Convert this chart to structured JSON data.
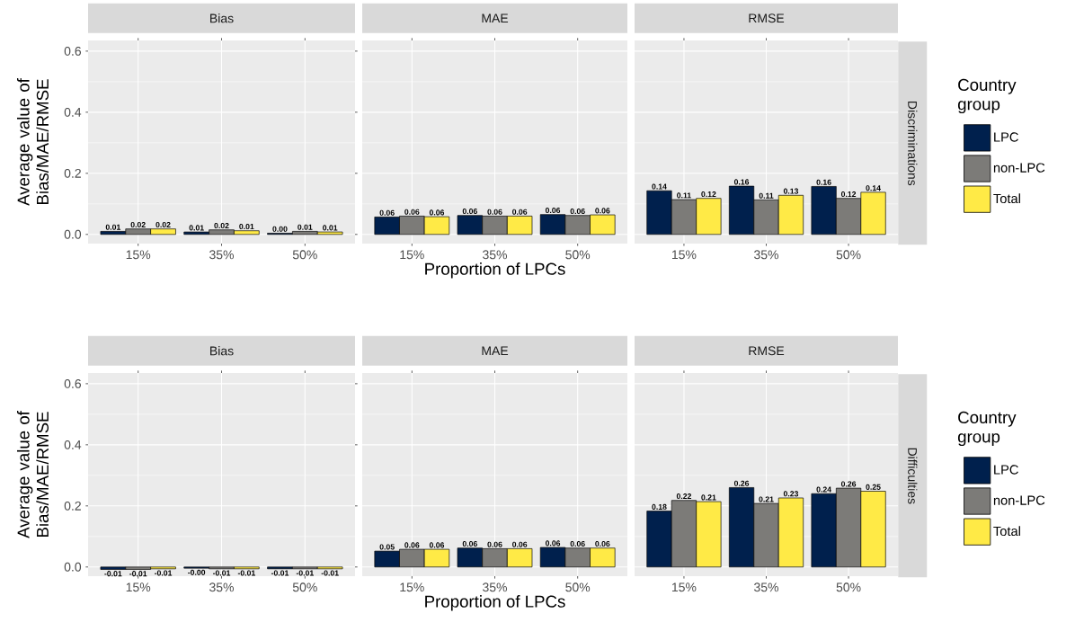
{
  "chart_data": [
    {
      "type": "bar",
      "title": "Bias",
      "ylabel": "Average value of Bias/MAE/RMSE",
      "categories": [
        "15%",
        "35%",
        "50%"
      ],
      "ylim": [
        -0.03,
        0.635
      ],
      "yticks": [
        {
          "value": 0,
          "label": "0.0"
        },
        {
          "value": 0.2,
          "label": "0.2"
        },
        {
          "value": 0.4,
          "label": "0.4"
        },
        {
          "value": 0.6,
          "label": "0.6"
        }
      ],
      "grid": true,
      "series": [
        {
          "color": "#00204D",
          "values": [
            0.01,
            0.008,
            0.004
          ],
          "value_labels": [
            "0.01",
            "0.01",
            "0.00"
          ]
        },
        {
          "color": "#7C7B78",
          "values": [
            0.018,
            0.015,
            0.01
          ],
          "value_labels": [
            "0.02",
            "0.02",
            "0.01"
          ]
        },
        {
          "color": "#FFEA46",
          "values": [
            0.018,
            0.012,
            0.008
          ],
          "value_labels": [
            "0.02",
            "0.01",
            "0.01"
          ]
        }
      ]
    },
    {
      "type": "bar",
      "title": "MAE",
      "xlabel": "Proportion of LPCs",
      "categories": [
        "15%",
        "35%",
        "50%"
      ],
      "ylim": [
        -0.03,
        0.635
      ],
      "yticks": [
        {
          "value": 0,
          "label": null
        },
        {
          "value": 0.2,
          "label": null
        },
        {
          "value": 0.4,
          "label": null
        },
        {
          "value": 0.6,
          "label": null
        }
      ],
      "grid": true,
      "tick_labels": "x",
      "series": [
        {
          "color": "#00204D",
          "values": [
            0.057,
            0.062,
            0.065
          ],
          "value_labels": [
            "0.06",
            "0.06",
            "0.06"
          ]
        },
        {
          "color": "#7C7B78",
          "values": [
            0.06,
            0.06,
            0.062
          ],
          "value_labels": [
            "0.06",
            "0.06",
            "0.06"
          ]
        },
        {
          "color": "#FFEA46",
          "values": [
            0.058,
            0.06,
            0.064
          ],
          "value_labels": [
            "0.06",
            "0.06",
            "0.06"
          ]
        }
      ]
    },
    {
      "type": "bar",
      "title": "RMSE",
      "annotations": [
        "Discriminations"
      ],
      "legend": "right",
      "legend_title": "Country group",
      "categories": [
        "15%",
        "35%",
        "50%"
      ],
      "ylim": [
        -0.03,
        0.635
      ],
      "yticks": [
        {
          "value": 0,
          "label": null
        },
        {
          "value": 0.2,
          "label": null
        },
        {
          "value": 0.4,
          "label": null
        },
        {
          "value": 0.6,
          "label": null
        }
      ],
      "grid": true,
      "tick_labels": "x",
      "series": [
        {
          "name": "LPC",
          "color": "#00204D",
          "values": [
            0.143,
            0.158,
            0.157
          ],
          "value_labels": [
            "0.14",
            "0.16",
            "0.16"
          ]
        },
        {
          "name": "non-LPC",
          "color": "#7C7B78",
          "values": [
            0.114,
            0.113,
            0.118
          ],
          "value_labels": [
            "0.11",
            "0.11",
            "0.12"
          ]
        },
        {
          "name": "Total",
          "color": "#FFEA46",
          "values": [
            0.118,
            0.128,
            0.138
          ],
          "value_labels": [
            "0.12",
            "0.13",
            "0.14"
          ]
        }
      ]
    },
    {
      "type": "bar",
      "title": "Bias",
      "ylabel": "Average value of Bias/MAE/RMSE",
      "categories": [
        "15%",
        "35%",
        "50%"
      ],
      "ylim": [
        -0.03,
        0.635
      ],
      "yticks": [
        {
          "value": 0,
          "label": "0.0"
        },
        {
          "value": 0.2,
          "label": "0.2"
        },
        {
          "value": 0.4,
          "label": "0.4"
        },
        {
          "value": 0.6,
          "label": "0.6"
        }
      ],
      "grid": true,
      "series": [
        {
          "color": "#00204D",
          "values": [
            -0.008,
            -0.004,
            -0.006
          ],
          "value_labels": [
            "-0.01",
            "-0.00",
            "-0.01"
          ]
        },
        {
          "color": "#7C7B78",
          "values": [
            -0.008,
            -0.006,
            -0.006
          ],
          "value_labels": [
            "-0.01",
            "-0.01",
            "-0.01"
          ]
        },
        {
          "color": "#FFEA46",
          "values": [
            -0.006,
            -0.006,
            -0.006
          ],
          "value_labels": [
            "-0.01",
            "-0.01",
            "-0.01"
          ]
        }
      ]
    },
    {
      "type": "bar",
      "title": "MAE",
      "xlabel": "Proportion of LPCs",
      "categories": [
        "15%",
        "35%",
        "50%"
      ],
      "ylim": [
        -0.03,
        0.635
      ],
      "yticks": [
        {
          "value": 0,
          "label": null
        },
        {
          "value": 0.2,
          "label": null
        },
        {
          "value": 0.4,
          "label": null
        },
        {
          "value": 0.6,
          "label": null
        }
      ],
      "grid": true,
      "tick_labels": "x",
      "series": [
        {
          "color": "#00204D",
          "values": [
            0.052,
            0.062,
            0.064
          ],
          "value_labels": [
            "0.05",
            "0.06",
            "0.06"
          ]
        },
        {
          "color": "#7C7B78",
          "values": [
            0.058,
            0.06,
            0.062
          ],
          "value_labels": [
            "0.06",
            "0.06",
            "0.06"
          ]
        },
        {
          "color": "#FFEA46",
          "values": [
            0.058,
            0.06,
            0.062
          ],
          "value_labels": [
            "0.06",
            "0.06",
            "0.06"
          ]
        }
      ]
    },
    {
      "type": "bar",
      "title": "RMSE",
      "annotations": [
        "Difficulties"
      ],
      "legend": "right",
      "legend_title": "Country group",
      "categories": [
        "15%",
        "35%",
        "50%"
      ],
      "ylim": [
        -0.03,
        0.635
      ],
      "yticks": [
        {
          "value": 0,
          "label": null
        },
        {
          "value": 0.2,
          "label": null
        },
        {
          "value": 0.4,
          "label": null
        },
        {
          "value": 0.6,
          "label": null
        }
      ],
      "grid": true,
      "tick_labels": "x",
      "series": [
        {
          "name": "LPC",
          "color": "#00204D",
          "values": [
            0.183,
            0.26,
            0.24
          ],
          "value_labels": [
            "0.18",
            "0.26",
            "0.24"
          ]
        },
        {
          "name": "non-LPC",
          "color": "#7C7B78",
          "values": [
            0.218,
            0.208,
            0.258
          ],
          "value_labels": [
            "0.22",
            "0.21",
            "0.26"
          ]
        },
        {
          "name": "Total",
          "color": "#FFEA46",
          "values": [
            0.214,
            0.226,
            0.248
          ],
          "value_labels": [
            "0.21",
            "0.23",
            "0.25"
          ]
        }
      ]
    }
  ]
}
